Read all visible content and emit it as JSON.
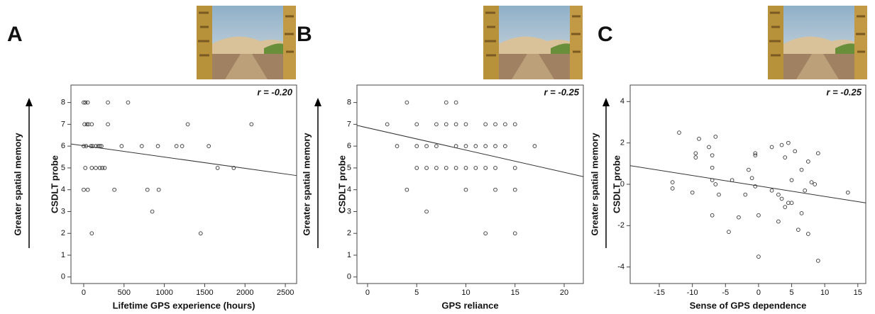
{
  "chart_data": [
    {
      "type": "scatter",
      "panel": "A",
      "annotation": "r = -0.20",
      "x_label": "Lifetime GPS experience (hours)",
      "y_label": "CSDLT probe",
      "y_outer_label": "Greater spatial memory",
      "xlim": [
        -158,
        2640
      ],
      "ylim": [
        -0.3,
        8.8
      ],
      "xticks": [
        0,
        500,
        1000,
        1500,
        2000,
        2500
      ],
      "yticks": [
        0,
        1,
        2,
        3,
        4,
        5,
        6,
        7,
        8
      ],
      "x": [
        0,
        20,
        50,
        10,
        40,
        60,
        100,
        0,
        30,
        90,
        110,
        150,
        180,
        200,
        220,
        100,
        150,
        200,
        230,
        260,
        20,
        0,
        50,
        300,
        550,
        300,
        470,
        720,
        920,
        1150,
        1220,
        1550,
        1290,
        2080,
        380,
        790,
        930,
        850,
        100,
        1450,
        1660,
        1860
      ],
      "values": [
        8,
        8,
        8,
        7,
        7,
        7,
        7,
        6,
        6,
        6,
        6,
        6,
        6,
        6,
        6,
        5,
        5,
        5,
        5,
        5,
        5,
        4,
        4,
        8,
        8,
        7,
        6,
        6,
        6,
        6,
        6,
        6,
        7,
        7,
        4,
        4,
        4,
        3,
        2,
        2,
        5,
        5
      ],
      "fit": {
        "x": [
          -158,
          2640
        ],
        "y": [
          6.1,
          4.65
        ]
      }
    },
    {
      "type": "scatter",
      "panel": "B",
      "annotation": "r = -0.25",
      "x_label": "GPS reliance",
      "y_label": "CSDLT probe",
      "y_outer_label": "Greater spatial memory",
      "xlim": [
        -1.08,
        21.95
      ],
      "ylim": [
        -0.3,
        8.8
      ],
      "xticks": [
        0,
        5,
        10,
        15,
        20
      ],
      "yticks": [
        0,
        1,
        2,
        3,
        4,
        5,
        6,
        7,
        8
      ],
      "x": [
        2,
        3,
        4,
        4,
        5,
        5,
        5,
        6,
        6,
        6,
        7,
        7,
        7,
        8,
        8,
        8,
        9,
        9,
        9,
        9,
        10,
        10,
        10,
        10,
        11,
        11,
        12,
        12,
        12,
        12,
        13,
        13,
        13,
        13,
        14,
        14,
        15,
        15,
        15,
        15,
        17
      ],
      "values": [
        7,
        6,
        8,
        4,
        7,
        6,
        5,
        6,
        5,
        3,
        7,
        6,
        5,
        8,
        7,
        5,
        8,
        7,
        6,
        5,
        7,
        6,
        5,
        4,
        6,
        5,
        7,
        6,
        5,
        2,
        7,
        6,
        5,
        4,
        7,
        6,
        7,
        5,
        4,
        2,
        6
      ],
      "fit": {
        "x": [
          -1.08,
          21.95
        ],
        "y": [
          6.95,
          4.6
        ]
      }
    },
    {
      "type": "scatter",
      "panel": "C",
      "annotation": "r = -0.25",
      "x_label": "Sense of GPS dependence",
      "y_label": "CSDLT probe",
      "y_outer_label": "Greater spatial memory",
      "xlim": [
        -19.4,
        16.2
      ],
      "ylim": [
        -4.8,
        4.8
      ],
      "xticks": [
        -15,
        -10,
        -5,
        0,
        5,
        10,
        15
      ],
      "yticks": [
        -4,
        -2,
        0,
        2,
        4
      ],
      "x": [
        -13,
        -13,
        -12,
        -10,
        -9.5,
        -9.5,
        -9,
        -7.5,
        -7,
        -7,
        -7,
        -7,
        -6.5,
        -6,
        -6.5,
        -4.5,
        -4,
        -3,
        -2,
        -1.5,
        -1,
        -0.5,
        -0.5,
        -0.5,
        0,
        0,
        2,
        2,
        3,
        3,
        3.5,
        3.5,
        4,
        4,
        4.5,
        4.5,
        5,
        5,
        5.5,
        6,
        6.5,
        6.5,
        7,
        7.5,
        7.5,
        8,
        9,
        9,
        8.5,
        13.5
      ],
      "values": [
        0.1,
        -0.2,
        2.5,
        -0.4,
        1.5,
        1.3,
        2.2,
        1.8,
        1.4,
        0.8,
        0.2,
        -1.5,
        2.3,
        -0.5,
        0,
        -2.3,
        0.2,
        -1.6,
        -0.5,
        0.7,
        0.3,
        1.4,
        1.5,
        -0.1,
        -1.5,
        -3.5,
        1.8,
        -0.3,
        -1.8,
        -0.5,
        1.9,
        -0.7,
        -1.1,
        1.3,
        2,
        -0.9,
        -0.9,
        0.2,
        1.6,
        -2.2,
        0.7,
        -1.4,
        -0.3,
        -2.4,
        1.1,
        0.1,
        1.5,
        -3.7,
        0,
        -0.4
      ],
      "fit": {
        "x": [
          -19.4,
          16.2
        ],
        "y": [
          0.9,
          -0.9
        ]
      }
    }
  ]
}
